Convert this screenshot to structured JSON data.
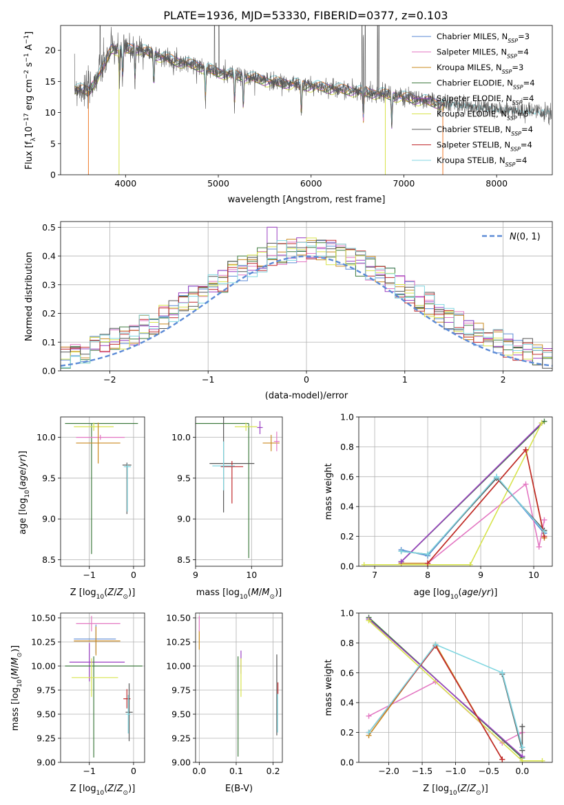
{
  "figure_title": "PLATE=1936, MJD=53330, FIBERID=0377, z=0.103",
  "colors": {
    "Chabrier MILES": "#5b8ad6",
    "Salpeter MILES": "#e377c2",
    "Kroupa MILES": "#c9881e",
    "Chabrier ELODIE": "#3d7a3d",
    "Salpeter ELODIE": "#9a3fc2",
    "Kroupa ELODIE": "#d7e34a",
    "Chabrier STELIB": "#555555",
    "Salpeter STELIB": "#c0282b",
    "Kroupa STELIB": "#7fd6e0",
    "orange_mix": "#f07a2a"
  },
  "chart_data": [
    {
      "id": "spectrum",
      "type": "line",
      "xlabel": "wavelength [Angstrom, rest frame]",
      "ylabel": "Flux [f_λ 10^-17 erg cm^-2 s^-1 A^-1]",
      "xlim": [
        3300,
        8600
      ],
      "ylim": [
        0,
        24
      ],
      "xticks": [
        4000,
        5000,
        6000,
        7000,
        8000
      ],
      "yticks": [
        0,
        5,
        10,
        15,
        20
      ],
      "grid": false,
      "legend_position": "upper right",
      "series": [
        {
          "name": "Chabrier MILES, N_SSP=3"
        },
        {
          "name": "Salpeter MILES, N_SSP=4"
        },
        {
          "name": "Kroupa MILES, N_SSP=3"
        },
        {
          "name": "Chabrier ELODIE, N_SSP=4"
        },
        {
          "name": "Salpeter ELODIE, N_SSP=4"
        },
        {
          "name": "Kroupa ELODIE, N_SSP=5"
        },
        {
          "name": "Chabrier STELIB, N_SSP=4"
        },
        {
          "name": "Salpeter STELIB, N_SSP=4"
        },
        {
          "name": "Kroupa STELIB, N_SSP=4"
        }
      ],
      "continuum": [
        [
          3450,
          14.0
        ],
        [
          3600,
          13.5
        ],
        [
          3750,
          17.0
        ],
        [
          3850,
          20.5
        ],
        [
          3950,
          20.0
        ],
        [
          4100,
          20.5
        ],
        [
          4300,
          19.5
        ],
        [
          4500,
          18.5
        ],
        [
          4800,
          17.5
        ],
        [
          5000,
          16.5
        ],
        [
          5300,
          15.8
        ],
        [
          5600,
          15.0
        ],
        [
          5900,
          14.5
        ],
        [
          6200,
          14.0
        ],
        [
          6500,
          13.5
        ],
        [
          6800,
          13.0
        ],
        [
          7100,
          12.3
        ],
        [
          7400,
          11.5
        ],
        [
          7700,
          11.0
        ],
        [
          8000,
          10.5
        ],
        [
          8300,
          10.2
        ],
        [
          8600,
          10.0
        ]
      ],
      "absorption_features": [
        3934,
        3969,
        4102,
        4305,
        4861,
        5175,
        5270,
        5895,
        6563,
        6870
      ],
      "emission_spikes": [
        3727,
        4959,
        5007,
        6548,
        6563,
        6584,
        6717,
        6731
      ]
    },
    {
      "id": "residuals",
      "type": "area",
      "xlabel": "(data-model)/error",
      "ylabel": "Normed distribution",
      "xlim": [
        -2.5,
        2.5
      ],
      "ylim": [
        0,
        0.52
      ],
      "xticks": [
        -2,
        -1,
        0,
        1,
        2
      ],
      "yticks": [
        0.0,
        0.1,
        0.2,
        0.3,
        0.4,
        0.5
      ],
      "grid": true,
      "legend_position": "upper right",
      "reference_curve": {
        "name": "N(0,1)",
        "mean": 0,
        "sigma": 1
      },
      "bin_width": 0.1
    },
    {
      "id": "age-vs-Z",
      "type": "scatter",
      "xlabel": "Z [log10(Z/Z_sun)]",
      "ylabel": "age [log10(age/yr)]",
      "xlim": [
        -1.65,
        0.25
      ],
      "ylim": [
        8.42,
        10.25
      ],
      "xticks": [
        -1,
        0
      ],
      "yticks": [
        8.5,
        9.0,
        9.5,
        10.0
      ],
      "grid": true,
      "points": [
        {
          "x": -0.95,
          "y": 10.17,
          "xerr": [
            0.6,
            1.05
          ],
          "yerr": [
            1.6,
            0.0
          ],
          "series": "Chabrier ELODIE"
        },
        {
          "x": -0.9,
          "y": 10.13,
          "xerr": [
            0.45,
            0.45
          ],
          "yerr": [
            0.05,
            0.05
          ],
          "series": "Kroupa ELODIE"
        },
        {
          "x": -0.75,
          "y": 10.0,
          "xerr": [
            0.55,
            0.55
          ],
          "yerr": [
            0.03,
            0.03
          ],
          "series": "Salpeter MILES"
        },
        {
          "x": -0.8,
          "y": 9.93,
          "xerr": [
            0.5,
            0.5
          ],
          "yerr": [
            0.25,
            0.25
          ],
          "series": "Kroupa MILES"
        },
        {
          "x": -0.15,
          "y": 9.66,
          "xerr": [
            0.1,
            0.1
          ],
          "yerr": [
            0.6,
            0.03
          ],
          "series": "Chabrier STELIB"
        },
        {
          "x": -0.14,
          "y": 9.64,
          "xerr": [
            0.08,
            0.08
          ],
          "yerr": [
            0.55,
            0.03
          ],
          "series": "Kroupa STELIB"
        }
      ]
    },
    {
      "id": "age-vs-mass",
      "type": "scatter",
      "xlabel": "mass [log10(M/M_sun)]",
      "ylabel": "",
      "xlim": [
        9.0,
        10.55
      ],
      "ylim": [
        8.42,
        10.25
      ],
      "xticks": [
        9,
        10
      ],
      "yticks": [
        8.5,
        9.0,
        9.5,
        10.0
      ],
      "grid": true,
      "points": [
        {
          "x": 9.95,
          "y": 10.17,
          "xerr": [
            0.95,
            0.0
          ],
          "yerr": [
            1.65,
            0.0
          ],
          "series": "Chabrier ELODIE"
        },
        {
          "x": 9.9,
          "y": 10.13,
          "xerr": [
            0.2,
            0.2
          ],
          "yerr": [
            0.05,
            0.05
          ],
          "series": "Kroupa ELODIE"
        },
        {
          "x": 10.15,
          "y": 10.12,
          "xerr": [
            0.05,
            0.05
          ],
          "yerr": [
            0.08,
            0.08
          ],
          "series": "Salpeter ELODIE"
        },
        {
          "x": 10.35,
          "y": 9.93,
          "xerr": [
            0.15,
            0.15
          ],
          "yerr": [
            0.1,
            0.1
          ],
          "series": "Kroupa MILES"
        },
        {
          "x": 10.45,
          "y": 9.95,
          "xerr": [
            0.05,
            0.05
          ],
          "yerr": [
            0.12,
            0.12
          ],
          "series": "Salpeter MILES"
        },
        {
          "x": 9.5,
          "y": 9.68,
          "xerr": [
            0.25,
            0.55
          ],
          "yerr": [
            0.6,
            0.6
          ],
          "series": "Chabrier STELIB"
        },
        {
          "x": 9.65,
          "y": 9.64,
          "xerr": [
            0.2,
            0.2
          ],
          "yerr": [
            0.45,
            0.07
          ],
          "series": "Salpeter STELIB"
        },
        {
          "x": 9.5,
          "y": 9.65,
          "xerr": [
            0.2,
            0.2
          ],
          "yerr": [
            0.3,
            0.3
          ],
          "series": "Kroupa STELIB"
        }
      ]
    },
    {
      "id": "weight-vs-age",
      "type": "line",
      "xlabel": "age [log10(age/yr)]",
      "ylabel": "mass weight",
      "xlim": [
        6.7,
        10.35
      ],
      "ylim": [
        0.0,
        1.0
      ],
      "xticks": [
        7,
        8,
        9,
        10
      ],
      "yticks": [
        0.0,
        0.2,
        0.4,
        0.6,
        0.8,
        1.0
      ],
      "grid": true,
      "series": [
        {
          "key": "Chabrier MILES",
          "x": [
            7.5,
            8.0,
            9.3,
            10.2
          ],
          "y": [
            0.11,
            0.07,
            0.6,
            0.22
          ]
        },
        {
          "key": "Salpeter MILES",
          "x": [
            8.0,
            9.85,
            10.1,
            10.2
          ],
          "y": [
            0.02,
            0.55,
            0.13,
            0.31
          ]
        },
        {
          "key": "Kroupa MILES",
          "x": [
            7.5,
            8.0,
            9.85,
            10.2
          ],
          "y": [
            0.02,
            0.02,
            0.78,
            0.19
          ]
        },
        {
          "key": "Chabrier ELODIE",
          "x": [
            7.5,
            10.2
          ],
          "y": [
            0.03,
            0.97
          ]
        },
        {
          "key": "Salpeter ELODIE",
          "x": [
            7.5,
            10.15
          ],
          "y": [
            0.03,
            0.96
          ]
        },
        {
          "key": "Kroupa ELODIE",
          "x": [
            6.8,
            8.8,
            10.15
          ],
          "y": [
            0.01,
            0.01,
            0.96
          ]
        },
        {
          "key": "Chabrier STELIB",
          "x": [
            7.5,
            8.0,
            9.3,
            10.2
          ],
          "y": [
            0.1,
            0.08,
            0.59,
            0.24
          ]
        },
        {
          "key": "Salpeter STELIB",
          "x": [
            8.0,
            9.85,
            10.2
          ],
          "y": [
            0.02,
            0.78,
            0.2
          ]
        },
        {
          "key": "Kroupa STELIB",
          "x": [
            7.5,
            8.0,
            9.3,
            10.2
          ],
          "y": [
            0.1,
            0.08,
            0.6,
            0.23
          ]
        }
      ]
    },
    {
      "id": "mass-vs-Z",
      "type": "scatter",
      "xlabel": "Z [log10(Z/Z_sun)]",
      "ylabel": "mass [log10(M/M_sun)]",
      "xlim": [
        -1.65,
        0.25
      ],
      "ylim": [
        9.0,
        10.55
      ],
      "xticks": [
        -1,
        0
      ],
      "yticks": [
        9.0,
        9.25,
        9.5,
        9.75,
        10.0,
        10.25,
        10.5
      ],
      "grid": true,
      "points": [
        {
          "x": -0.95,
          "y": 10.44,
          "xerr": [
            0.35,
            0.65
          ],
          "yerr": [
            0.08,
            0.08
          ],
          "series": "Salpeter MILES"
        },
        {
          "x": -0.85,
          "y": 10.28,
          "xerr": [
            0.5,
            0.45
          ],
          "yerr": [
            0.15,
            0.15
          ],
          "series": "Chabrier MILES"
        },
        {
          "x": -0.85,
          "y": 10.26,
          "xerr": [
            0.5,
            0.55
          ],
          "yerr": [
            0.15,
            0.15
          ],
          "series": "Kroupa MILES"
        },
        {
          "x": -1.0,
          "y": 10.04,
          "xerr": [
            0.45,
            0.8
          ],
          "yerr": [
            0.2,
            0.2
          ],
          "series": "Salpeter ELODIE"
        },
        {
          "x": -0.9,
          "y": 10.0,
          "xerr": [
            0.65,
            1.1
          ],
          "yerr": [
            0.95,
            0.1
          ],
          "series": "Chabrier ELODIE"
        },
        {
          "x": -0.95,
          "y": 9.88,
          "xerr": [
            0.45,
            0.6
          ],
          "yerr": [
            0.2,
            0.2
          ],
          "series": "Kroupa ELODIE"
        },
        {
          "x": -0.15,
          "y": 9.66,
          "xerr": [
            0.08,
            0.08
          ],
          "yerr": [
            0.1,
            0.1
          ],
          "series": "Salpeter STELIB"
        },
        {
          "x": -0.1,
          "y": 9.52,
          "xerr": [
            0.08,
            0.08
          ],
          "yerr": [
            0.3,
            0.3
          ],
          "series": "Chabrier STELIB"
        },
        {
          "x": -0.12,
          "y": 9.5,
          "xerr": [
            0.05,
            0.05
          ],
          "yerr": [
            0.2,
            0.2
          ],
          "series": "Kroupa STELIB"
        }
      ]
    },
    {
      "id": "mass-vs-EBV",
      "type": "scatter",
      "xlabel": "E(B-V)",
      "ylabel": "",
      "xlim": [
        -0.01,
        0.225
      ],
      "ylim": [
        9.0,
        10.55
      ],
      "xticks": [
        0.0,
        0.1,
        0.2
      ],
      "yticks": [
        9.0,
        9.25,
        9.5,
        9.75,
        10.0,
        10.25,
        10.5
      ],
      "grid": true,
      "points": [
        {
          "x": 0.0,
          "y": 10.27,
          "yerr": [
            0.1,
            0.1
          ],
          "series": "Kroupa MILES"
        },
        {
          "x": 0.0,
          "y": 10.44,
          "yerr": [
            0.08,
            0.08
          ],
          "series": "Salpeter MILES"
        },
        {
          "x": 0.105,
          "y": 9.58,
          "yerr": [
            0.52,
            0.52
          ],
          "series": "Chabrier ELODIE"
        },
        {
          "x": 0.113,
          "y": 10.04,
          "yerr": [
            0.12,
            0.12
          ],
          "series": "Salpeter ELODIE"
        },
        {
          "x": 0.113,
          "y": 9.88,
          "yerr": [
            0.2,
            0.2
          ],
          "series": "Kroupa ELODIE"
        },
        {
          "x": 0.21,
          "y": 9.7,
          "yerr": [
            0.42,
            0.42
          ],
          "series": "Chabrier STELIB"
        },
        {
          "x": 0.213,
          "y": 9.77,
          "yerr": [
            0.06,
            0.06
          ],
          "series": "Salpeter STELIB"
        },
        {
          "x": 0.212,
          "y": 9.51,
          "yerr": [
            0.2,
            0.2
          ],
          "series": "Kroupa STELIB"
        }
      ]
    },
    {
      "id": "weight-vs-Z",
      "type": "line",
      "xlabel": "Z [log10(Z/Z_sun)]",
      "ylabel": "mass weight",
      "xlim": [
        -2.45,
        0.45
      ],
      "ylim": [
        0.0,
        1.0
      ],
      "xticks": [
        -2.0,
        -1.5,
        -1.0,
        -0.5,
        0.0
      ],
      "yticks": [
        0.0,
        0.2,
        0.4,
        0.6,
        0.8,
        1.0
      ],
      "grid": true,
      "series": [
        {
          "key": "Chabrier MILES",
          "x": [
            -0.3,
            0.0
          ],
          "y": [
            0.6,
            0.1
          ]
        },
        {
          "key": "Salpeter MILES",
          "x": [
            -2.3,
            -1.3,
            -0.3,
            0.0
          ],
          "y": [
            0.31,
            0.54,
            0.13,
            0.2
          ]
        },
        {
          "key": "Kroupa MILES",
          "x": [
            -2.3,
            -1.3,
            -0.3
          ],
          "y": [
            0.18,
            0.79,
            0.02
          ]
        },
        {
          "key": "Chabrier ELODIE",
          "x": [
            -2.3,
            0.0
          ],
          "y": [
            0.97,
            0.03
          ]
        },
        {
          "key": "Salpeter ELODIE",
          "x": [
            -2.3,
            0.0
          ],
          "y": [
            0.96,
            0.04
          ]
        },
        {
          "key": "Kroupa ELODIE",
          "x": [
            -2.3,
            0.0,
            0.3
          ],
          "y": [
            0.95,
            0.01,
            0.01
          ]
        },
        {
          "key": "Chabrier STELIB",
          "x": [
            -0.3,
            0.0,
            0.0
          ],
          "y": [
            0.59,
            0.08,
            0.24
          ]
        },
        {
          "key": "Salpeter STELIB",
          "x": [
            -2.3,
            -1.3,
            -0.3
          ],
          "y": [
            0.2,
            0.78,
            0.02
          ]
        },
        {
          "key": "Kroupa STELIB",
          "x": [
            -2.3,
            -1.3,
            -0.3,
            0.0
          ],
          "y": [
            0.2,
            0.79,
            0.6,
            0.1
          ]
        }
      ]
    }
  ]
}
